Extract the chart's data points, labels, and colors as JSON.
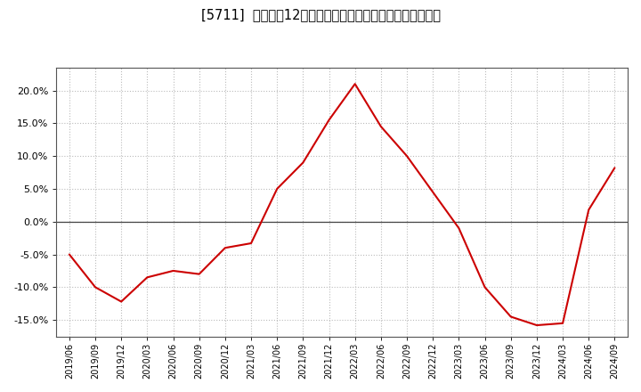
{
  "title": "[5711]  売上高の12か月移動合計の対前年同期増減率の推移",
  "line_color": "#cc0000",
  "background_color": "#ffffff",
  "plot_bg_color": "#ffffff",
  "grid_color": "#bbbbbb",
  "ylim": [
    -0.175,
    0.235
  ],
  "yticks": [
    -0.15,
    -0.1,
    -0.05,
    0.0,
    0.05,
    0.1,
    0.15,
    0.2
  ],
  "dates": [
    "2019/06",
    "2019/09",
    "2019/12",
    "2020/03",
    "2020/06",
    "2020/09",
    "2020/12",
    "2021/03",
    "2021/06",
    "2021/09",
    "2021/12",
    "2022/03",
    "2022/06",
    "2022/09",
    "2022/12",
    "2023/03",
    "2023/06",
    "2023/09",
    "2023/12",
    "2024/03",
    "2024/06",
    "2024/09"
  ],
  "values": [
    -0.05,
    -0.1,
    -0.122,
    -0.085,
    -0.075,
    -0.08,
    -0.04,
    -0.033,
    0.05,
    0.09,
    0.155,
    0.21,
    0.145,
    0.1,
    0.045,
    -0.01,
    -0.1,
    -0.145,
    -0.158,
    -0.155,
    0.018,
    0.082
  ]
}
